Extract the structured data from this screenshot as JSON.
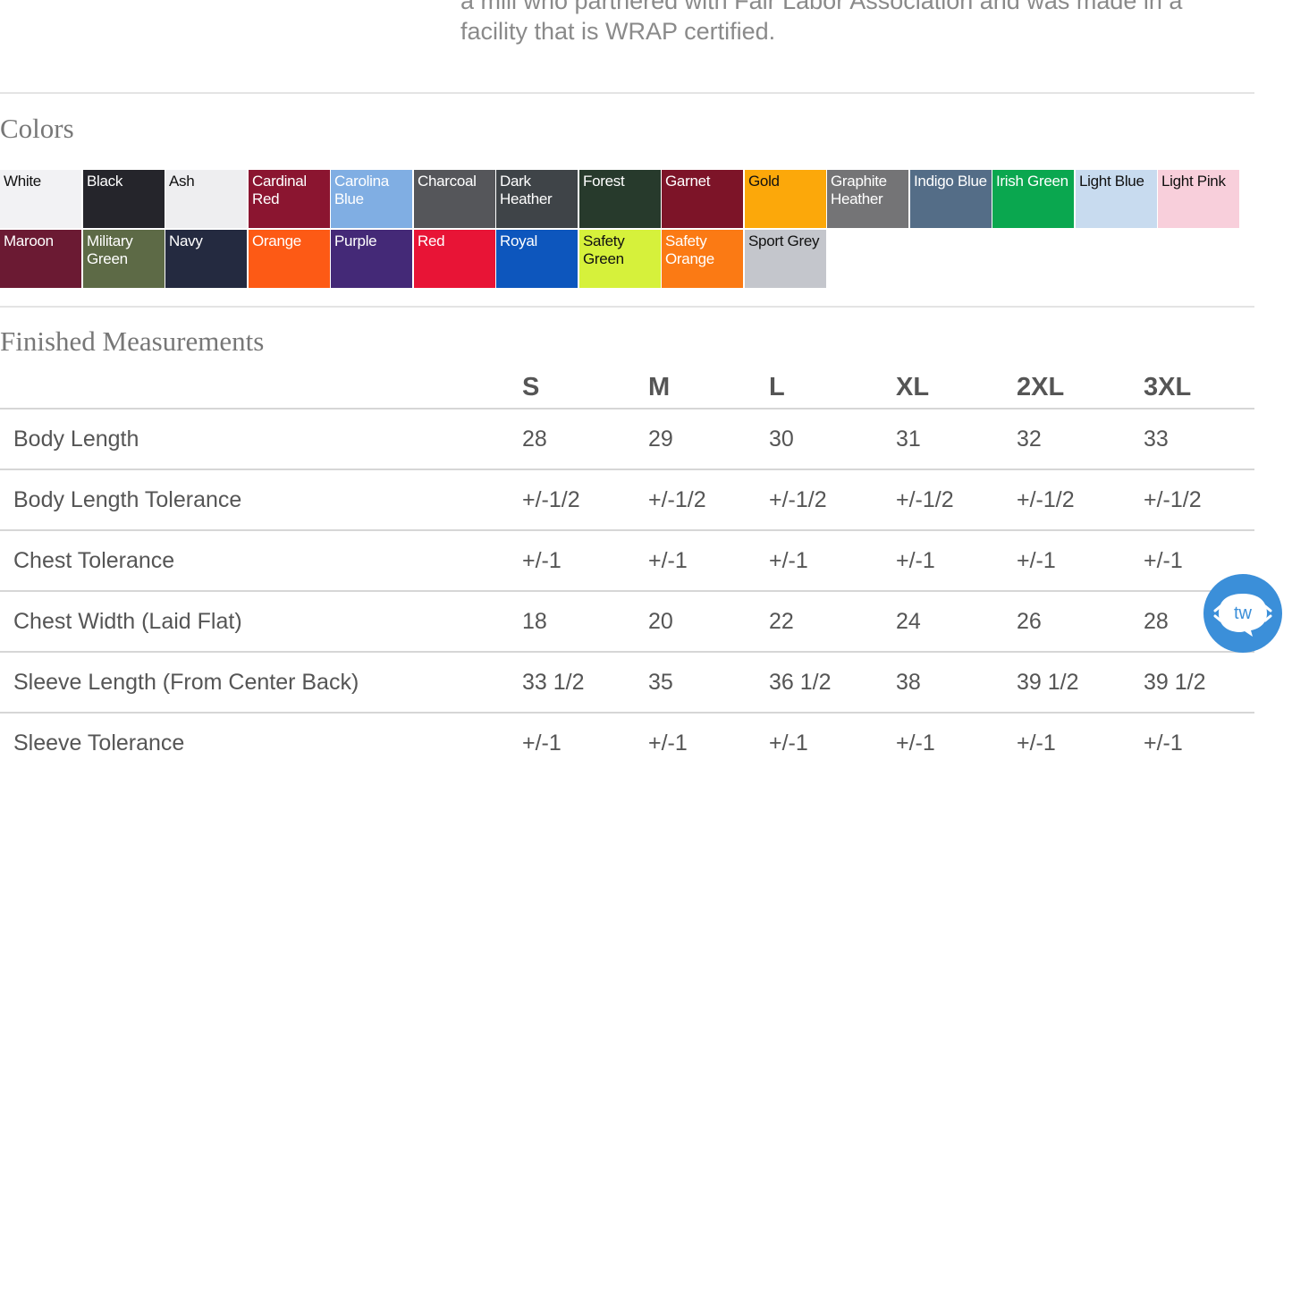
{
  "intro": {
    "text": "a mill who partnered with Fair Labor Association and was made in a facility that is WRAP certified."
  },
  "colors": {
    "title": "Colors",
    "swatches": [
      {
        "name": "White",
        "hex": "#f2f2f4",
        "text": "light"
      },
      {
        "name": "Black",
        "hex": "#25252b",
        "text": "dark"
      },
      {
        "name": "Ash",
        "hex": "#eeeef0",
        "text": "light"
      },
      {
        "name": "Cardinal Red",
        "hex": "#8b1530",
        "text": "dark"
      },
      {
        "name": "Carolina Blue",
        "hex": "#80aee3",
        "text": "dark"
      },
      {
        "name": "Charcoal",
        "hex": "#55565a",
        "text": "dark"
      },
      {
        "name": "Dark Heather",
        "hex": "#3f4448",
        "text": "dark"
      },
      {
        "name": "Forest",
        "hex": "#273a2c",
        "text": "dark"
      },
      {
        "name": "Garnet",
        "hex": "#7d1428",
        "text": "dark"
      },
      {
        "name": "Gold",
        "hex": "#fca80a",
        "text": "light"
      },
      {
        "name": "Graphite Heather",
        "hex": "#747476",
        "text": "dark"
      },
      {
        "name": "Indigo Blue",
        "hex": "#546d87",
        "text": "dark"
      },
      {
        "name": "Irish Green",
        "hex": "#0aa74f",
        "text": "dark"
      },
      {
        "name": "Light Blue",
        "hex": "#c8dbef",
        "text": "light"
      },
      {
        "name": "Light Pink",
        "hex": "#f8cfdb",
        "text": "light"
      },
      {
        "name": "Maroon",
        "hex": "#6b1a33",
        "text": "dark"
      },
      {
        "name": "Military Green",
        "hex": "#5d6a46",
        "text": "dark"
      },
      {
        "name": "Navy",
        "hex": "#242a40",
        "text": "dark"
      },
      {
        "name": "Orange",
        "hex": "#fd5a15",
        "text": "dark"
      },
      {
        "name": "Purple",
        "hex": "#442977",
        "text": "dark"
      },
      {
        "name": "Red",
        "hex": "#e81436",
        "text": "dark"
      },
      {
        "name": "Royal",
        "hex": "#0d56bd",
        "text": "dark"
      },
      {
        "name": "Safety Green",
        "hex": "#d6f13b",
        "text": "light"
      },
      {
        "name": "Safety Orange",
        "hex": "#fb7a14",
        "text": "dark"
      },
      {
        "name": "Sport Grey",
        "hex": "#c4c6cc",
        "text": "light"
      }
    ]
  },
  "measurements": {
    "title": "Finished Measurements",
    "sizes": [
      "S",
      "M",
      "L",
      "XL",
      "2XL",
      "3XL"
    ],
    "rows": [
      {
        "label": "Body Length",
        "values": [
          "28",
          "29",
          "30",
          "31",
          "32",
          "33"
        ]
      },
      {
        "label": "Body Length Tolerance",
        "values": [
          "+/-1/2",
          "+/-1/2",
          "+/-1/2",
          "+/-1/2",
          "+/-1/2",
          "+/-1/2"
        ]
      },
      {
        "label": "Chest Tolerance",
        "values": [
          "+/-1",
          "+/-1",
          "+/-1",
          "+/-1",
          "+/-1",
          "+/-1"
        ]
      },
      {
        "label": "Chest Width (Laid Flat)",
        "values": [
          "18",
          "20",
          "22",
          "24",
          "26",
          "28"
        ]
      },
      {
        "label": "Sleeve Length (From Center Back)",
        "values": [
          "33 1/2",
          "35",
          "36 1/2",
          "38",
          "39 1/2",
          "39 1/2"
        ]
      },
      {
        "label": "Sleeve Tolerance",
        "values": [
          "+/-1",
          "+/-1",
          "+/-1",
          "+/-1",
          "+/-1",
          "+/-1"
        ]
      }
    ]
  },
  "chat_widget": {
    "icon": "chat-bubble-icon",
    "logo_text": "tw",
    "color": "#3b8fd9"
  }
}
